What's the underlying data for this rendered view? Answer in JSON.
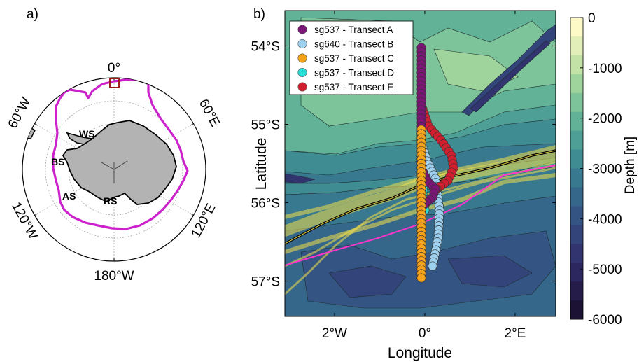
{
  "panel_a": {
    "label": "a)",
    "meridian_labels": {
      "top": "0°",
      "right_upper": "60°E",
      "right_lower": "120°E",
      "bottom": "180°W",
      "left_lower": "120°W",
      "left_upper": "60°W"
    },
    "region_labels": {
      "ws": "WS",
      "bs": "BS",
      "as": "AS",
      "rs": "RS"
    },
    "front_color": "#cc22cc",
    "box_color": "#9b1b1b",
    "land_color": "#b3b3b3"
  },
  "panel_b": {
    "label": "b)",
    "x_axis_label": "Longitude",
    "y_axis_label": "Latitude",
    "x_ticks": [
      {
        "value": -2,
        "label": "2°W"
      },
      {
        "value": 0,
        "label": "0°"
      },
      {
        "value": 2,
        "label": "2°E"
      }
    ],
    "y_ticks": [
      {
        "value": -54,
        "label": "54°S"
      },
      {
        "value": -55,
        "label": "55°S"
      },
      {
        "value": -56,
        "label": "56°S"
      },
      {
        "value": -57,
        "label": "57°S"
      }
    ],
    "x_range": [
      -3.1,
      2.9
    ],
    "y_range": [
      -57.45,
      -53.55
    ],
    "legend": [
      {
        "label": "sg537 - Transect A",
        "color": "#7b1576"
      },
      {
        "label": "sg640 - Transect B",
        "color": "#9dcfee"
      },
      {
        "label": "sg537 - Transect C",
        "color": "#f5a21b"
      },
      {
        "label": "sg537 - Transect D",
        "color": "#26dcd6"
      },
      {
        "label": "sg537 - Transect E",
        "color": "#d0202f"
      }
    ],
    "front_mean_color": "#000000",
    "front_envelope_color": "#f4e04a",
    "front_climatology_color": "#ff33cc"
  },
  "colorbar": {
    "label": "Depth [m]",
    "ticks": [
      {
        "value": 0,
        "label": "0"
      },
      {
        "value": -1000,
        "label": "-1000"
      },
      {
        "value": -2000,
        "label": "-2000"
      },
      {
        "value": -3000,
        "label": "-3000"
      },
      {
        "value": -4000,
        "label": "-4000"
      },
      {
        "value": -5000,
        "label": "-5000"
      },
      {
        "value": -6000,
        "label": "-6000"
      }
    ],
    "range": [
      -6000,
      0
    ],
    "levels": [
      "#fdfac8",
      "#e2efb8",
      "#c2e3a5",
      "#9fd49d",
      "#7ec49a",
      "#62b297",
      "#4e9f95",
      "#3f8c93",
      "#38798f",
      "#35678a",
      "#345583",
      "#33447a",
      "#323470",
      "#2d2760",
      "#261c4a",
      "#1b1234"
    ]
  }
}
